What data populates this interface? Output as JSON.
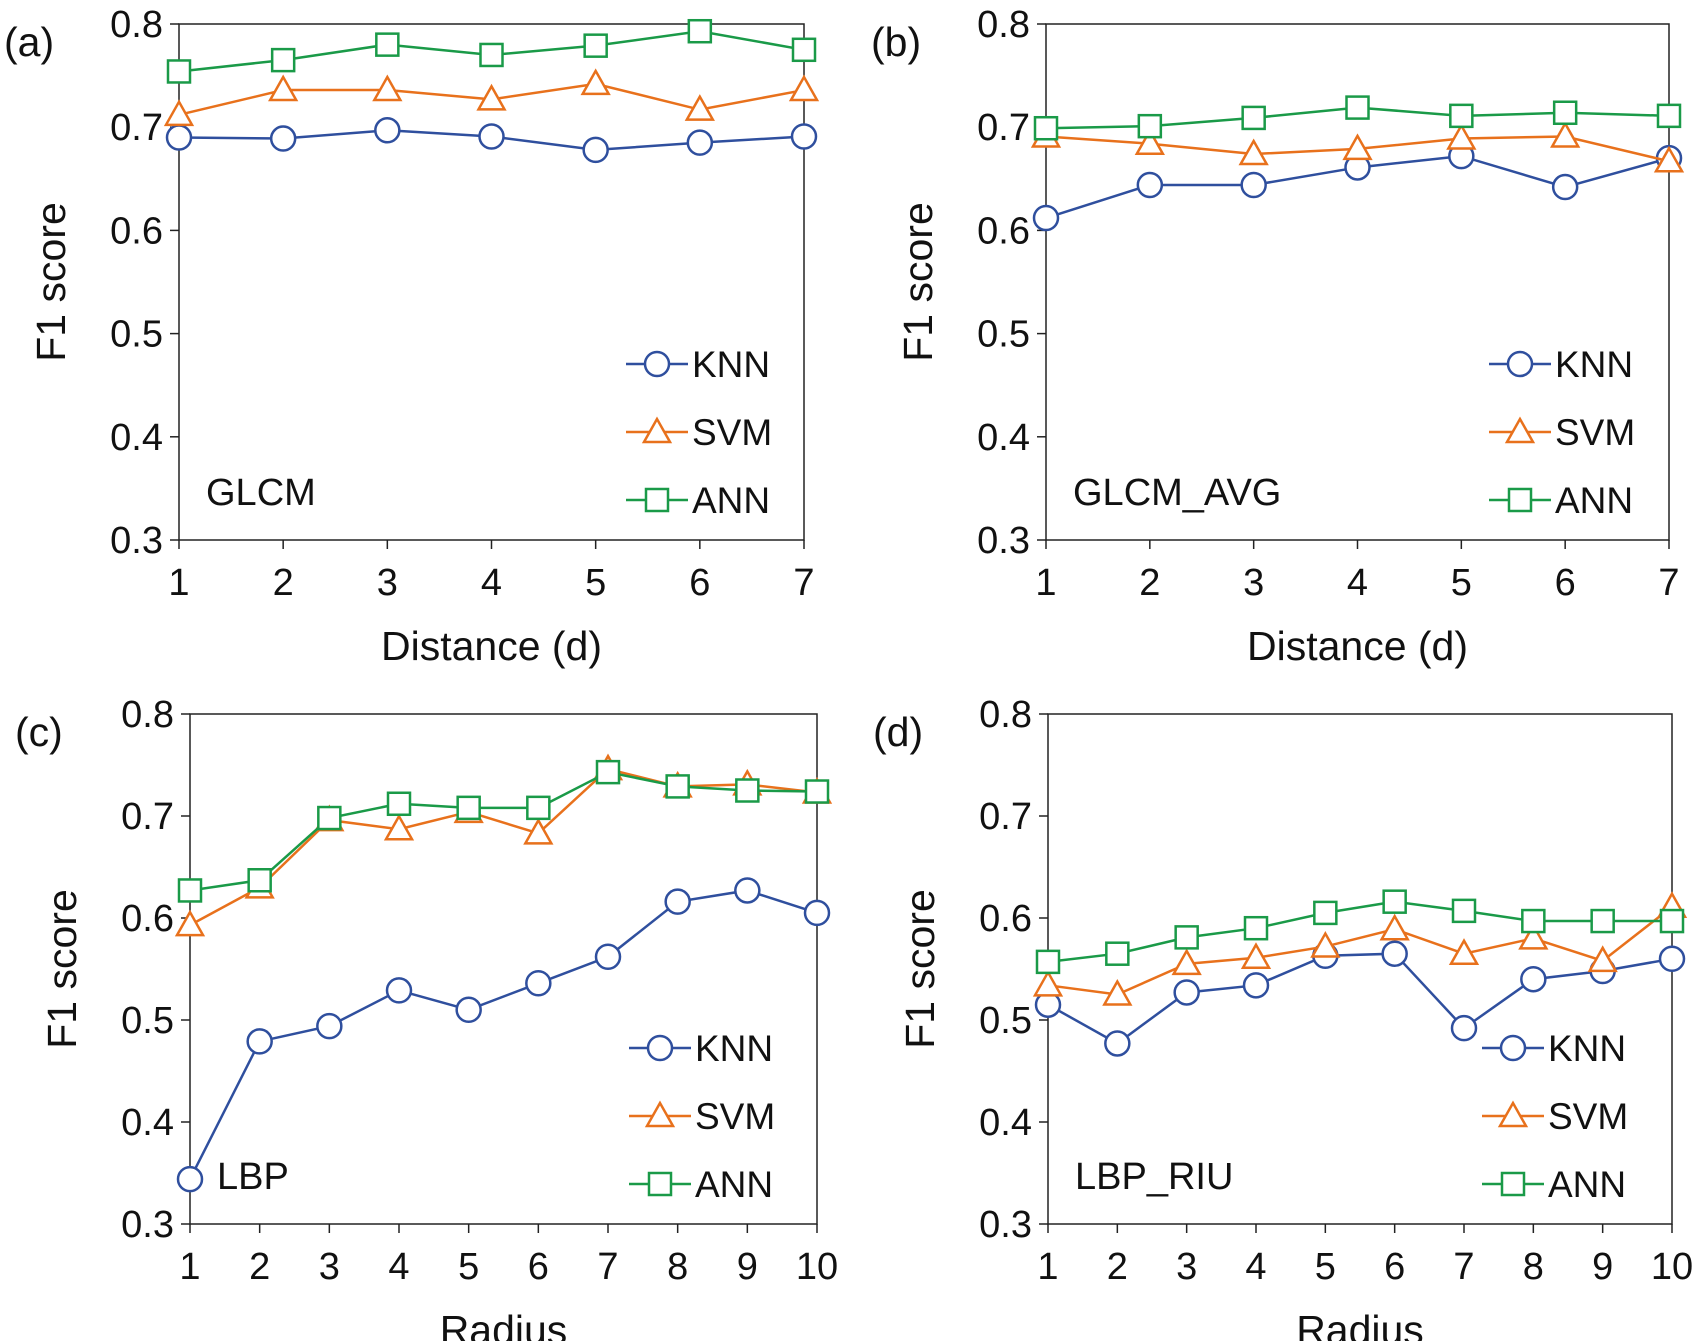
{
  "colors": {
    "KNN": "#2f4f9e",
    "SVM": "#e8711c",
    "ANN": "#1a9a48"
  },
  "markers": {
    "KNN": "circle",
    "SVM": "triangle",
    "ANN": "square"
  },
  "chart_data": [
    {
      "type": "line",
      "panel_label": "(a)",
      "inner_label": "GLCM",
      "xlabel": "Distance (d)",
      "ylabel": "F1 score",
      "x": [
        1,
        2,
        3,
        4,
        5,
        6,
        7
      ],
      "xlim": [
        1,
        7
      ],
      "ylim": [
        0.3,
        0.8
      ],
      "yticks": [
        "0.3",
        "0.4",
        "0.5",
        "0.6",
        "0.7",
        "0.8"
      ],
      "xticks": [
        "1",
        "2",
        "3",
        "4",
        "5",
        "6",
        "7"
      ],
      "grid": false,
      "legend": "bottom-right",
      "series": [
        {
          "name": "KNN",
          "values": [
            0.69,
            0.689,
            0.697,
            0.691,
            0.678,
            0.685,
            0.691
          ]
        },
        {
          "name": "SVM",
          "values": [
            0.712,
            0.736,
            0.736,
            0.727,
            0.742,
            0.717,
            0.736
          ]
        },
        {
          "name": "ANN",
          "values": [
            0.754,
            0.765,
            0.78,
            0.77,
            0.779,
            0.793,
            0.775
          ]
        }
      ]
    },
    {
      "type": "line",
      "panel_label": "(b)",
      "inner_label": "GLCM_AVG",
      "xlabel": "Distance (d)",
      "ylabel": "F1 score",
      "x": [
        1,
        2,
        3,
        4,
        5,
        6,
        7
      ],
      "xlim": [
        1,
        7
      ],
      "ylim": [
        0.3,
        0.8
      ],
      "yticks": [
        "0.3",
        "0.4",
        "0.5",
        "0.6",
        "0.7",
        "0.8"
      ],
      "xticks": [
        "1",
        "2",
        "3",
        "4",
        "5",
        "6",
        "7"
      ],
      "grid": false,
      "legend": "bottom-right",
      "series": [
        {
          "name": "KNN",
          "values": [
            0.612,
            0.644,
            0.644,
            0.661,
            0.672,
            0.642,
            0.67
          ]
        },
        {
          "name": "SVM",
          "values": [
            0.691,
            0.684,
            0.674,
            0.679,
            0.689,
            0.691,
            0.667
          ]
        },
        {
          "name": "ANN",
          "values": [
            0.699,
            0.701,
            0.709,
            0.719,
            0.711,
            0.714,
            0.711
          ]
        }
      ]
    },
    {
      "type": "line",
      "panel_label": "(c)",
      "inner_label": "LBP",
      "xlabel": "Radius",
      "ylabel": "F1 score",
      "x": [
        1,
        2,
        3,
        4,
        5,
        6,
        7,
        8,
        9,
        10
      ],
      "xlim": [
        1,
        10
      ],
      "ylim": [
        0.3,
        0.8
      ],
      "yticks": [
        "0.3",
        "0.4",
        "0.5",
        "0.6",
        "0.7",
        "0.8"
      ],
      "xticks": [
        "1",
        "2",
        "3",
        "4",
        "5",
        "6",
        "7",
        "8",
        "9",
        "10"
      ],
      "grid": false,
      "legend": "bottom-right",
      "series": [
        {
          "name": "KNN",
          "values": [
            0.344,
            0.479,
            0.494,
            0.529,
            0.51,
            0.536,
            0.562,
            0.616,
            0.627,
            0.605
          ]
        },
        {
          "name": "SVM",
          "values": [
            0.593,
            0.63,
            0.696,
            0.687,
            0.704,
            0.683,
            0.746,
            0.729,
            0.731,
            0.723
          ]
        },
        {
          "name": "ANN",
          "values": [
            0.627,
            0.637,
            0.698,
            0.712,
            0.708,
            0.708,
            0.743,
            0.729,
            0.725,
            0.724
          ]
        }
      ]
    },
    {
      "type": "line",
      "panel_label": "(d)",
      "inner_label": "LBP_RIU",
      "xlabel": "Radius",
      "ylabel": "F1 score",
      "x": [
        1,
        2,
        3,
        4,
        5,
        6,
        7,
        8,
        9,
        10
      ],
      "xlim": [
        1,
        10
      ],
      "ylim": [
        0.3,
        0.8
      ],
      "yticks": [
        "0.3",
        "0.4",
        "0.5",
        "0.6",
        "0.7",
        "0.8"
      ],
      "xticks": [
        "1",
        "2",
        "3",
        "4",
        "5",
        "6",
        "7",
        "8",
        "9",
        "10"
      ],
      "grid": false,
      "legend": "bottom-right",
      "series": [
        {
          "name": "KNN",
          "values": [
            0.515,
            0.477,
            0.527,
            0.534,
            0.563,
            0.565,
            0.492,
            0.54,
            0.548,
            0.56
          ]
        },
        {
          "name": "SVM",
          "values": [
            0.534,
            0.525,
            0.555,
            0.561,
            0.572,
            0.589,
            0.565,
            0.58,
            0.558,
            0.611
          ]
        },
        {
          "name": "ANN",
          "values": [
            0.557,
            0.565,
            0.581,
            0.59,
            0.605,
            0.616,
            0.607,
            0.597,
            0.597,
            0.597
          ]
        }
      ]
    }
  ]
}
